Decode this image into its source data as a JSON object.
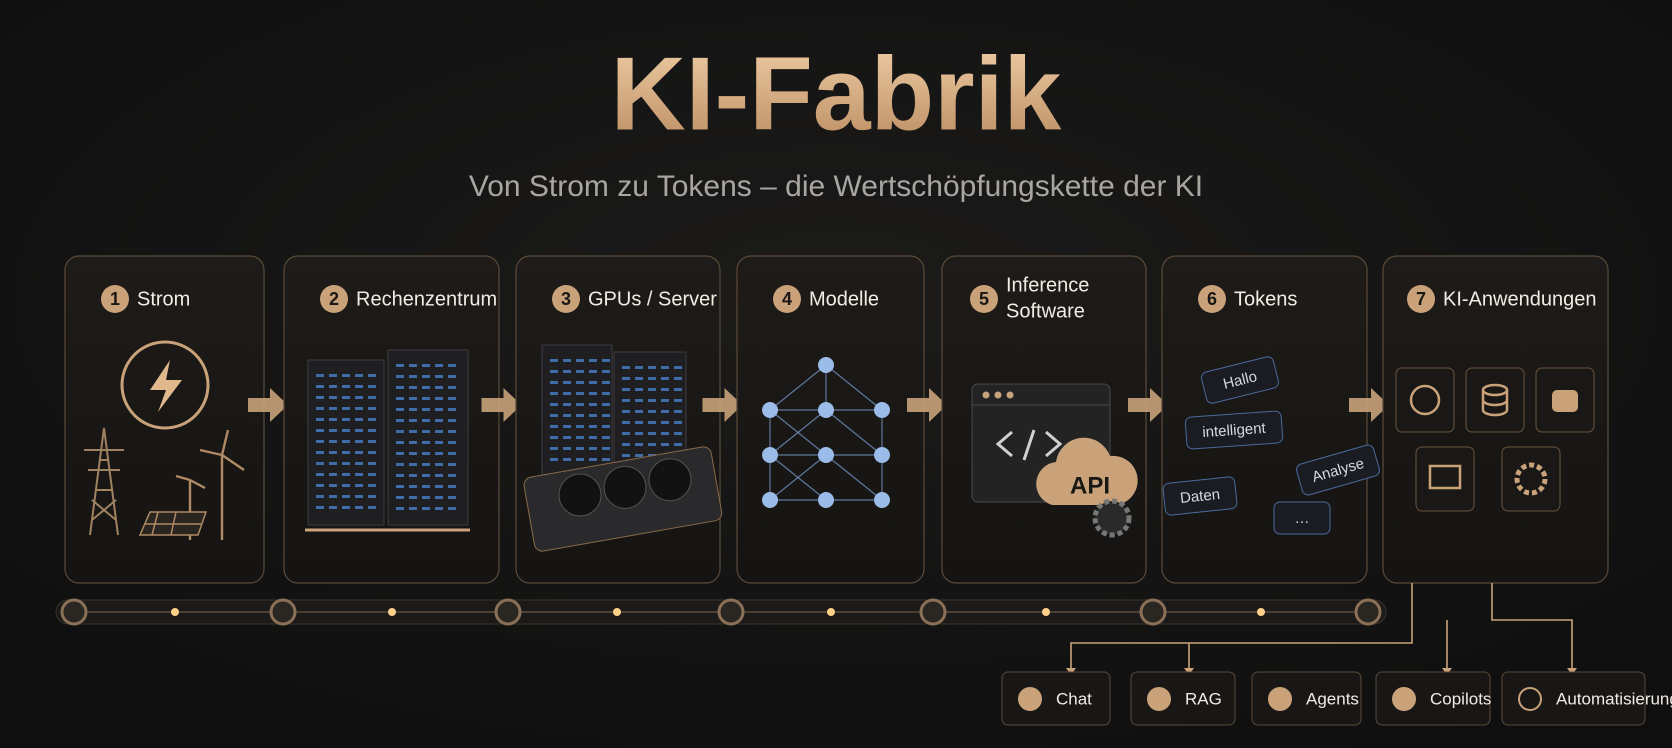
{
  "header": {
    "title": "KI-Fabrik",
    "subtitle": "Von Strom zu Tokens – die Wertschöpfungskette der KI"
  },
  "steps": [
    {
      "number": "1",
      "label": "Strom"
    },
    {
      "number": "2",
      "label": "Rechenzentrum"
    },
    {
      "number": "3",
      "label": "GPUs / Server"
    },
    {
      "number": "4",
      "label": "Modelle"
    },
    {
      "number": "5",
      "label": [
        "Inference",
        "Software"
      ]
    },
    {
      "number": "6",
      "label": "Tokens"
    },
    {
      "number": "7",
      "label": "KI-Anwendungen"
    }
  ],
  "api_label": "API",
  "tokens": [
    "Hallo",
    "intelligent",
    "Analyse",
    "Daten",
    "…"
  ],
  "outputs": [
    "Chat",
    "RAG",
    "Agents",
    "Copilots",
    "Automatisierung"
  ]
}
